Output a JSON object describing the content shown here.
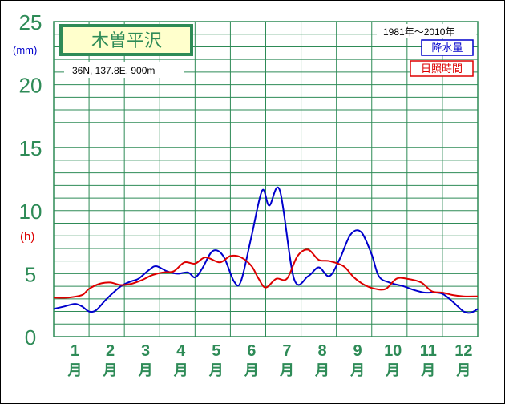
{
  "chart_data": {
    "type": "line",
    "title": "木曽平沢",
    "subtitle": "36N,  137.8E,  900m",
    "period": "1981年〜2010年",
    "y_unit_precip": "(mm)",
    "y_unit_sun": "(h)",
    "ylim": [
      0,
      25
    ],
    "y_ticks": [
      "0",
      "5",
      "10",
      "15",
      "20",
      "25"
    ],
    "x_months": [
      {
        "num": "1",
        "unit": "月"
      },
      {
        "num": "2",
        "unit": "月"
      },
      {
        "num": "3",
        "unit": "月"
      },
      {
        "num": "4",
        "unit": "月"
      },
      {
        "num": "5",
        "unit": "月"
      },
      {
        "num": "6",
        "unit": "月"
      },
      {
        "num": "7",
        "unit": "月"
      },
      {
        "num": "8",
        "unit": "月"
      },
      {
        "num": "9",
        "unit": "月"
      },
      {
        "num": "10",
        "unit": "月"
      },
      {
        "num": "11",
        "unit": "月"
      },
      {
        "num": "12",
        "unit": "月"
      }
    ],
    "x_range": [
      0,
      12
    ],
    "grid": true,
    "series": [
      {
        "name": "降水量",
        "color": "#0000cc",
        "x": [
          0,
          0.3,
          0.6,
          0.8,
          1.0,
          1.2,
          1.5,
          1.9,
          2.2,
          2.4,
          2.7,
          2.9,
          3.2,
          3.5,
          3.8,
          4.0,
          4.2,
          4.5,
          4.8,
          5.1,
          5.3,
          5.6,
          5.9,
          6.1,
          6.4,
          6.8,
          7.2,
          7.5,
          7.8,
          8.1,
          8.4,
          8.7,
          9.0,
          9.2,
          9.5,
          9.9,
          10.2,
          10.5,
          10.8,
          11.0,
          11.2,
          11.4,
          11.6,
          11.8,
          12.0
        ],
        "y": [
          2.2,
          2.4,
          2.6,
          2.4,
          2.0,
          2.1,
          3.0,
          4.0,
          4.4,
          4.6,
          5.3,
          5.6,
          5.2,
          5.0,
          5.1,
          4.7,
          5.4,
          6.8,
          6.4,
          4.4,
          4.4,
          8.0,
          11.6,
          10.4,
          11.6,
          4.6,
          4.8,
          5.5,
          4.8,
          6.2,
          8.1,
          8.3,
          6.5,
          4.8,
          4.3,
          4.0,
          3.7,
          3.5,
          3.5,
          3.4,
          3.0,
          2.5,
          2.0,
          1.9,
          2.2
        ]
      },
      {
        "name": "日照時間",
        "color": "#dd0000",
        "x": [
          0,
          0.4,
          0.8,
          1.0,
          1.3,
          1.6,
          1.9,
          2.2,
          2.5,
          2.8,
          3.1,
          3.4,
          3.7,
          4.0,
          4.3,
          4.7,
          5.0,
          5.3,
          5.6,
          5.8,
          6.0,
          6.3,
          6.6,
          6.9,
          7.2,
          7.5,
          7.8,
          8.2,
          8.5,
          8.8,
          9.1,
          9.4,
          9.7,
          10.0,
          10.4,
          10.7,
          11.0,
          11.3,
          11.6,
          12.0
        ],
        "y": [
          3.1,
          3.1,
          3.3,
          3.8,
          4.2,
          4.3,
          4.1,
          4.2,
          4.5,
          4.9,
          5.1,
          5.2,
          5.9,
          5.8,
          6.3,
          5.9,
          6.4,
          6.3,
          5.6,
          4.6,
          3.9,
          4.6,
          4.6,
          6.4,
          6.9,
          6.1,
          6.0,
          5.6,
          4.7,
          4.1,
          3.8,
          3.8,
          4.6,
          4.6,
          4.3,
          3.6,
          3.5,
          3.3,
          3.2,
          3.2
        ]
      }
    ]
  }
}
